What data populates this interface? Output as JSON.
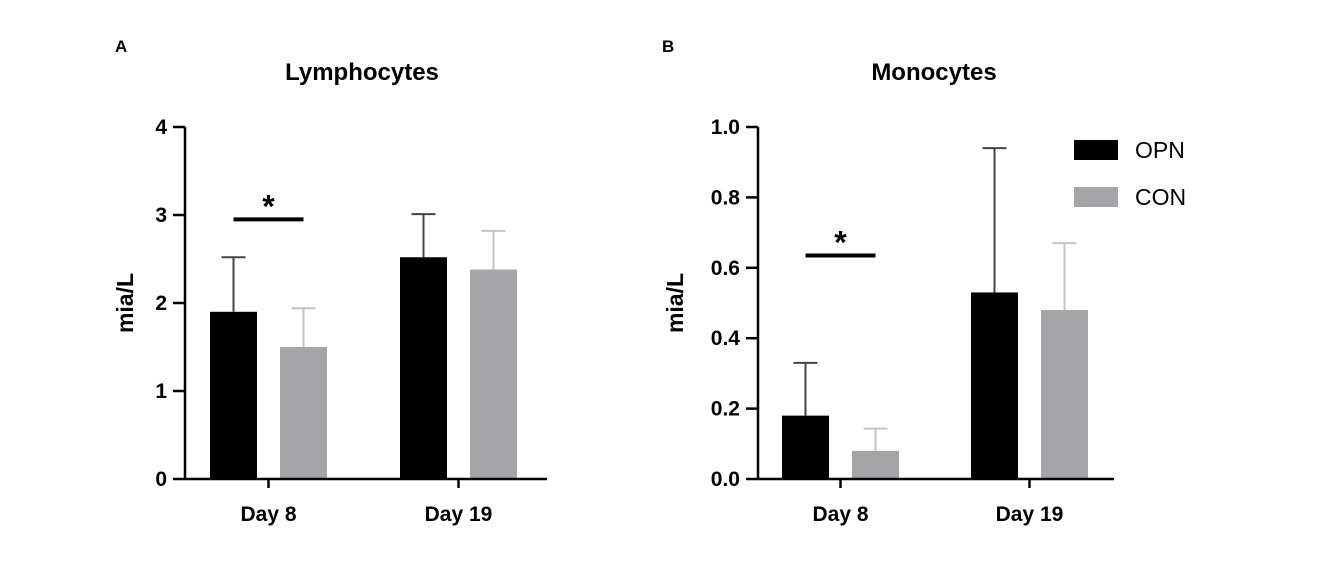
{
  "chart_data": [
    {
      "panel": "A",
      "type": "bar",
      "title": "Lymphocytes",
      "ylabel": "mia/L",
      "xlabel": "",
      "categories": [
        "Day 8",
        "Day 19"
      ],
      "ylim": [
        0,
        4
      ],
      "yticks": [
        "0",
        "1",
        "2",
        "3",
        "4"
      ],
      "series": [
        {
          "name": "OPN",
          "color": "#000000",
          "errcolor": "#444444",
          "values": [
            1.9,
            2.52
          ],
          "errors": [
            0.62,
            0.49
          ]
        },
        {
          "name": "CON",
          "color": "#a5a5a8",
          "errcolor": "#c4c4c6",
          "values": [
            1.5,
            2.38
          ],
          "errors": [
            0.44,
            0.44
          ]
        }
      ],
      "significance": [
        {
          "category": "Day 8",
          "label": "*",
          "y": 2.95
        }
      ],
      "grid": false,
      "legend": false
    },
    {
      "panel": "B",
      "type": "bar",
      "title": "Monocytes",
      "ylabel": "mia/L",
      "xlabel": "",
      "categories": [
        "Day 8",
        "Day 19"
      ],
      "ylim": [
        0,
        1.0
      ],
      "yticks": [
        "0.0",
        "0.2",
        "0.4",
        "0.6",
        "0.8",
        "1.0"
      ],
      "series": [
        {
          "name": "OPN",
          "color": "#000000",
          "errcolor": "#444444",
          "values": [
            0.18,
            0.53
          ],
          "errors": [
            0.15,
            0.41
          ]
        },
        {
          "name": "CON",
          "color": "#a5a5a8",
          "errcolor": "#c4c4c6",
          "values": [
            0.08,
            0.48
          ],
          "errors": [
            0.063,
            0.19
          ]
        }
      ],
      "significance": [
        {
          "category": "Day 8",
          "label": "*",
          "y": 0.635
        }
      ],
      "grid": false,
      "legend": "top-right"
    }
  ]
}
